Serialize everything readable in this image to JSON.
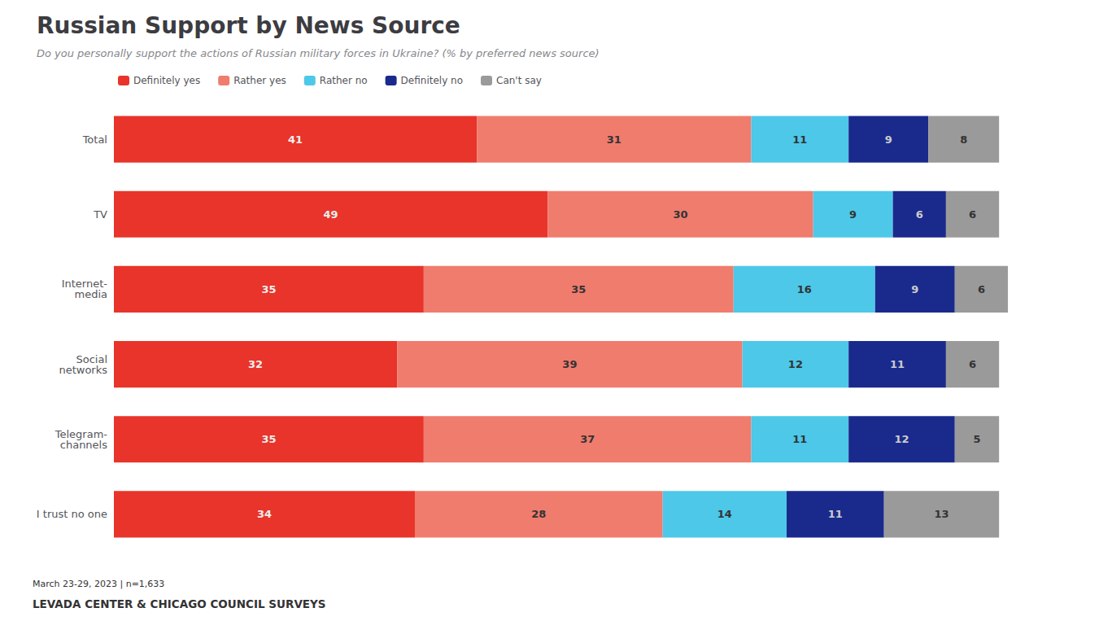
{
  "chart_data": {
    "type": "bar",
    "orientation": "horizontal",
    "stacked": true,
    "title": "Russian Support by News Source",
    "subtitle": "Do you personally support the actions of Russian military forces in Ukraine? (% by preferred news source)",
    "annotations": [
      "March 23-29, 2023 | n=1,633",
      "LEVADA CENTER & CHICAGO COUNCIL SURVEYS"
    ],
    "categories": [
      "Total",
      "TV",
      "Internet-\nmedia",
      "Social\nnetworks",
      "Telegram-\nchannels",
      "I trust no one"
    ],
    "series": [
      {
        "name": "Definitely yes",
        "color": "#e8342a",
        "values": [
          41,
          49,
          35,
          32,
          35,
          34
        ]
      },
      {
        "name": "Rather yes",
        "color": "#f07c6e",
        "values": [
          31,
          30,
          35,
          39,
          37,
          28
        ]
      },
      {
        "name": "Rather no",
        "color": "#4dc8e8",
        "values": [
          11,
          9,
          16,
          12,
          11,
          14
        ]
      },
      {
        "name": "Definitely no",
        "color": "#1a2a8c",
        "values": [
          9,
          6,
          9,
          11,
          12,
          11
        ]
      },
      {
        "name": "Can't say",
        "color": "#9a9a9a",
        "values": [
          8,
          6,
          6,
          6,
          5,
          13
        ]
      }
    ],
    "xlim": [
      0,
      110
    ],
    "xticks": [
      0,
      10,
      20,
      30,
      40,
      50,
      60,
      70,
      80,
      90,
      100,
      110
    ],
    "grid": false,
    "legend": "upper left",
    "data_labels": true,
    "tick_labels": "y"
  }
}
